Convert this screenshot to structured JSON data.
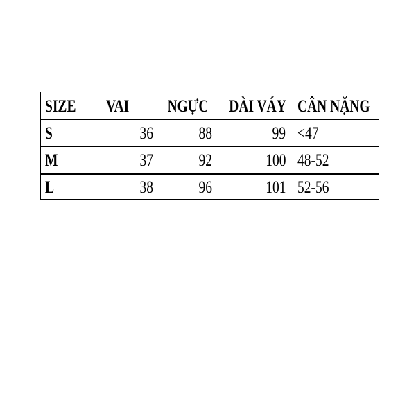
{
  "headers": [
    "SIZE",
    "VAI",
    "NGỰC",
    "DÀI VÁY",
    "CÂN NẶNG"
  ],
  "rows": [
    {
      "size": "S",
      "vai": "36",
      "nguc": "88",
      "dai_vay": "99",
      "can_nang": "<47"
    },
    {
      "size": "M",
      "vai": "37",
      "nguc": "92",
      "dai_vay": "100",
      "can_nang": "48-52"
    },
    {
      "size": "L",
      "vai": "38",
      "nguc": "96",
      "dai_vay": "101",
      "can_nang": "52-56"
    }
  ]
}
